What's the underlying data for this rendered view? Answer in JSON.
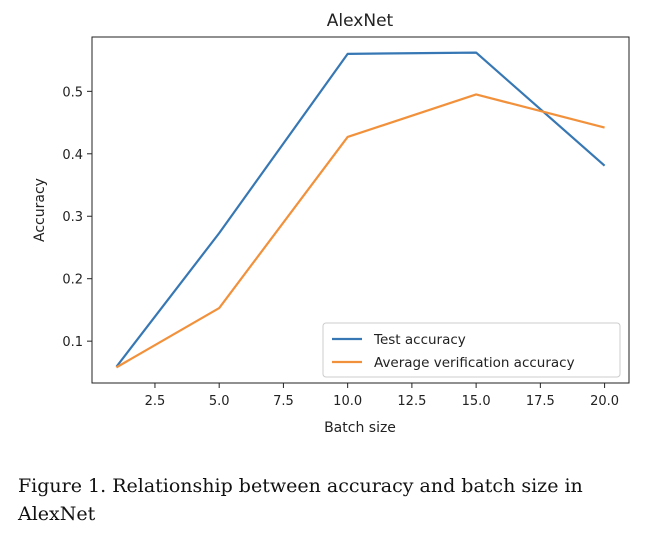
{
  "figure": {
    "caption": "Figure 1. Relationship between accuracy and batch size in AlexNet"
  },
  "chart_data": {
    "type": "line",
    "title": "AlexNet",
    "xlabel": "Batch size",
    "ylabel": "Accuracy",
    "xlim": [
      0.05,
      20.95
    ],
    "ylim": [
      0.033,
      0.587
    ],
    "xticks": [
      2.5,
      5.0,
      7.5,
      10.0,
      12.5,
      15.0,
      17.5,
      20.0
    ],
    "xtick_labels": [
      "2.5",
      "5.0",
      "7.5",
      "10.0",
      "12.5",
      "15.0",
      "17.5",
      "20.0"
    ],
    "yticks": [
      0.1,
      0.2,
      0.3,
      0.4,
      0.5
    ],
    "ytick_labels": [
      "0.1",
      "0.2",
      "0.3",
      "0.4",
      "0.5"
    ],
    "x": [
      1,
      5,
      10,
      15,
      20
    ],
    "series": [
      {
        "name": "Test accuracy",
        "values": [
          0.059,
          0.273,
          0.56,
          0.562,
          0.381
        ],
        "color": "#3778b4"
      },
      {
        "name": "Average verification accuracy",
        "values": [
          0.058,
          0.153,
          0.427,
          0.495,
          0.442
        ],
        "color": "#f2913b"
      }
    ],
    "legend_position": "lower-right",
    "grid": false
  }
}
